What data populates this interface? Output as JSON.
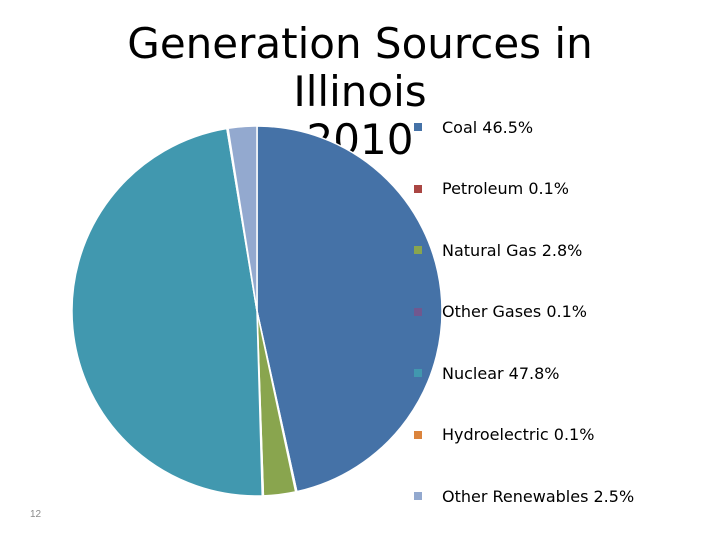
{
  "chart_data": {
    "type": "pie",
    "title": "Generation Sources in Illinois 2010",
    "title_lines": [
      "Generation Sources in Illinois",
      "2010"
    ],
    "legend_position": "right",
    "slices": [
      {
        "label": "Coal 46.5%",
        "value": 46.5,
        "color": "#4572A7"
      },
      {
        "label": "Petroleum 0.1%",
        "value": 0.1,
        "color": "#AA4643"
      },
      {
        "label": "Natural Gas 2.8%",
        "value": 2.8,
        "color": "#89A54E"
      },
      {
        "label": "Other Gases 0.1%",
        "value": 0.1,
        "color": "#71588F"
      },
      {
        "label": "Nuclear 47.8%",
        "value": 47.8,
        "color": "#4198AF"
      },
      {
        "label": "Hydroelectric 0.1%",
        "value": 0.1,
        "color": "#DB843D"
      },
      {
        "label": "Other Renewables 2.5%",
        "value": 2.5,
        "color": "#93A9CF"
      }
    ]
  },
  "page_number": "12"
}
